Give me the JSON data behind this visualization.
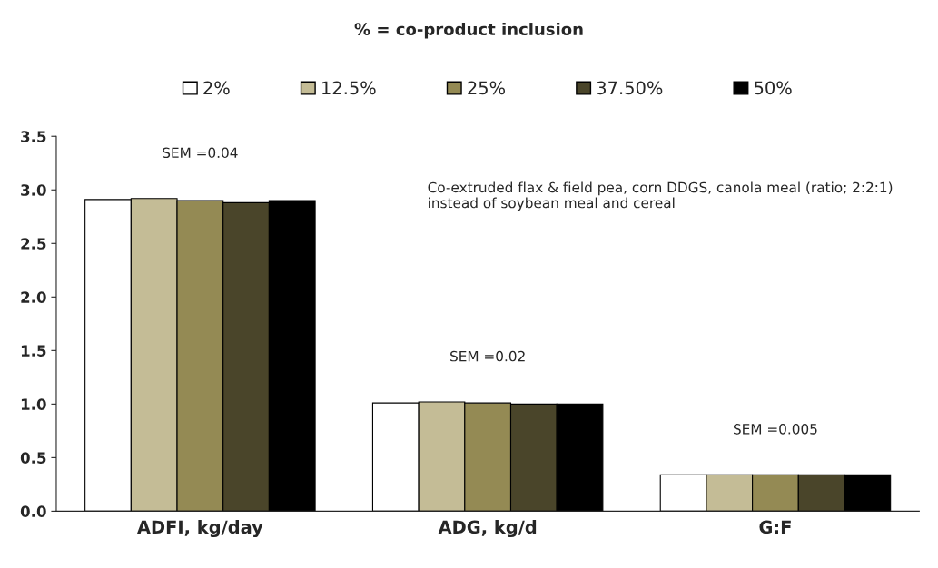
{
  "chart_data": {
    "type": "bar",
    "title": "% = co-product inclusion",
    "categories": [
      "ADFI, kg/day",
      "ADG, kg/d",
      "G:F"
    ],
    "series": [
      {
        "name": "2%",
        "color": "#ffffff",
        "values": [
          2.91,
          1.01,
          0.34
        ]
      },
      {
        "name": "12.5%",
        "color": "#c4bc96",
        "values": [
          2.92,
          1.02,
          0.34
        ]
      },
      {
        "name": "25%",
        "color": "#948a54",
        "values": [
          2.9,
          1.01,
          0.34
        ]
      },
      {
        "name": "37.50%",
        "color": "#4a452a",
        "values": [
          2.88,
          1.0,
          0.34
        ]
      },
      {
        "name": "50%",
        "color": "#000000",
        "values": [
          2.9,
          1.0,
          0.34
        ]
      }
    ],
    "ylim": [
      0,
      3.5
    ],
    "yticks": [
      {
        "value": 0,
        "label": "0.0"
      },
      {
        "value": 0.5,
        "label": "0.5"
      },
      {
        "value": 1,
        "label": "1.0"
      },
      {
        "value": 1.5,
        "label": "1.5"
      },
      {
        "value": 2,
        "label": "2.0"
      },
      {
        "value": 2.5,
        "label": "2.5"
      },
      {
        "value": 3,
        "label": "3.0"
      },
      {
        "value": 3.5,
        "label": "3.5"
      }
    ],
    "annotations": [
      "SEM =0.04",
      "SEM =0.02",
      "SEM =0.005",
      "Co-extruded flax & field pea, corn DDGS, canola meal (ratio; 2:2:1) instead of soybean meal and cereal"
    ],
    "legend": "top",
    "grid": false
  }
}
